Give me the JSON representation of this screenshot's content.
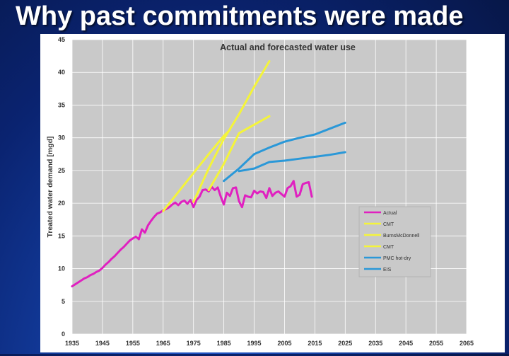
{
  "slide": {
    "title": "Why past commitments were made"
  },
  "colors": {
    "background": "#0d2a80",
    "plot_area": "#c9c9c9",
    "actual": "#e020c0",
    "forecast_yellow": "#f4f43a",
    "forecast_blue": "#2a98d8"
  },
  "chart_data": {
    "type": "line",
    "title": "Actual and forecasted water use",
    "xlabel": "",
    "ylabel": "Treated water demand [mgd]",
    "xlim": [
      1935,
      2065
    ],
    "ylim": [
      0,
      45
    ],
    "x_ticks": [
      1935,
      1945,
      1955,
      1965,
      1975,
      1985,
      1995,
      2005,
      2015,
      2025,
      2035,
      2045,
      2055,
      2065
    ],
    "y_ticks": [
      0,
      5,
      10,
      15,
      20,
      25,
      30,
      35,
      40,
      45
    ],
    "grid": true,
    "legend_position": "right",
    "series": [
      {
        "name": "Actual",
        "color": "#e020c0",
        "x": [
          1935,
          1936,
          1937,
          1938,
          1939,
          1940,
          1941,
          1942,
          1943,
          1944,
          1945,
          1946,
          1947,
          1948,
          1949,
          1950,
          1951,
          1952,
          1953,
          1954,
          1955,
          1956,
          1957,
          1958,
          1959,
          1960,
          1961,
          1962,
          1963,
          1964,
          1965,
          1966,
          1967,
          1968,
          1969,
          1970,
          1971,
          1972,
          1973,
          1974,
          1975,
          1976,
          1977,
          1978,
          1979,
          1980,
          1981,
          1982,
          1983,
          1984,
          1985,
          1986,
          1987,
          1988,
          1989,
          1990,
          1991,
          1992,
          1993,
          1994,
          1995,
          1996,
          1997,
          1998,
          1999,
          2000,
          2001,
          2002,
          2003,
          2004,
          2005,
          2006,
          2007,
          2008,
          2009,
          2010,
          2011,
          2012,
          2013,
          2014
        ],
        "values": [
          7.3,
          7.6,
          7.9,
          8.2,
          8.5,
          8.7,
          9.0,
          9.2,
          9.5,
          9.7,
          10.1,
          10.6,
          11.0,
          11.5,
          11.9,
          12.4,
          12.9,
          13.3,
          13.8,
          14.3,
          14.6,
          14.9,
          14.5,
          16.0,
          15.5,
          16.6,
          17.3,
          17.9,
          18.4,
          18.6,
          18.9,
          19.1,
          19.4,
          19.8,
          20.1,
          19.7,
          20.2,
          20.4,
          19.9,
          20.5,
          19.4,
          20.5,
          21.0,
          22.0,
          22.1,
          21.8,
          22.5,
          22.0,
          22.4,
          21.0,
          19.8,
          21.6,
          21.1,
          22.3,
          22.4,
          20.3,
          19.4,
          21.2,
          21.0,
          20.9,
          21.9,
          21.5,
          21.8,
          21.7,
          20.8,
          22.3,
          21.1,
          21.6,
          21.8,
          21.4,
          21.0,
          22.3,
          22.6,
          23.4,
          21.0,
          21.3,
          22.9,
          23.1,
          23.2,
          21.0
        ]
      },
      {
        "name": "CMT",
        "color": "#f4f43a",
        "x": [
          1965,
          1970,
          1975,
          1980,
          1985,
          1987
        ],
        "values": [
          18.8,
          21.7,
          24.6,
          27.5,
          30.3,
          31.2
        ]
      },
      {
        "name": "BurnsMcDonnell",
        "color": "#f4f43a",
        "x": [
          1975,
          1980,
          1985,
          1990,
          1995,
          2000
        ],
        "values": [
          20.2,
          25.3,
          29.8,
          33.6,
          37.8,
          41.7
        ]
      },
      {
        "name": "CMT",
        "color": "#f4f43a",
        "x": [
          1980,
          1985,
          1990,
          1995,
          2000
        ],
        "values": [
          22.0,
          26.0,
          30.7,
          32.0,
          33.3
        ]
      },
      {
        "name": "PMC hot-dry",
        "color": "#2a98d8",
        "x": [
          1985,
          1990,
          1995,
          2000,
          2005,
          2010,
          2015,
          2020,
          2025
        ],
        "values": [
          23.4,
          25.3,
          27.5,
          28.5,
          29.4,
          30.0,
          30.5,
          31.4,
          32.3
        ]
      },
      {
        "name": "EIS",
        "color": "#2a98d8",
        "x": [
          1990,
          1995,
          2000,
          2005,
          2010,
          2015,
          2020,
          2025
        ],
        "values": [
          24.9,
          25.3,
          26.3,
          26.5,
          26.8,
          27.1,
          27.4,
          27.8
        ]
      }
    ]
  }
}
